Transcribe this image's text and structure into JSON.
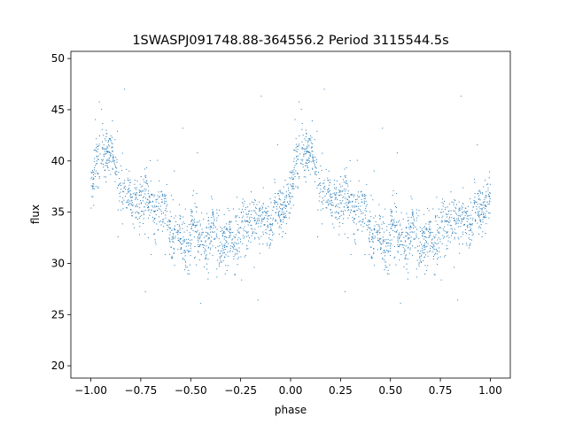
{
  "chart_data": {
    "type": "scatter",
    "title": "1SWASPJ091748.88-364556.2 Period 3115544.5s",
    "xlabel": "phase",
    "ylabel": "flux",
    "xlim": [
      -1.1,
      1.1
    ],
    "ylim": [
      18.8,
      50.7
    ],
    "x_ticks": [
      -1.0,
      -0.75,
      -0.5,
      -0.25,
      0.0,
      0.25,
      0.5,
      0.75,
      1.0
    ],
    "x_tick_labels": [
      "−1.00",
      "−0.75",
      "−0.50",
      "−0.25",
      "0.00",
      "0.25",
      "0.50",
      "0.75",
      "1.00"
    ],
    "y_ticks": [
      20,
      25,
      30,
      35,
      40,
      45,
      50
    ],
    "y_tick_labels": [
      "20",
      "25",
      "30",
      "35",
      "40",
      "45",
      "50"
    ],
    "grid": false,
    "marker_color": "#1f77b4",
    "series": [
      {
        "period_repeat": 1.0,
        "trend": [
          {
            "x": 0.0,
            "y": 37.5
          },
          {
            "x": 0.04,
            "y": 39.5
          },
          {
            "x": 0.08,
            "y": 40.0
          },
          {
            "x": 0.12,
            "y": 39.0
          },
          {
            "x": 0.18,
            "y": 37.5
          },
          {
            "x": 0.25,
            "y": 35.5
          },
          {
            "x": 0.32,
            "y": 34.5
          },
          {
            "x": 0.4,
            "y": 34.0
          },
          {
            "x": 0.48,
            "y": 33.0
          },
          {
            "x": 0.55,
            "y": 32.0
          },
          {
            "x": 0.6,
            "y": 31.5
          },
          {
            "x": 0.66,
            "y": 32.5
          },
          {
            "x": 0.72,
            "y": 33.0
          },
          {
            "x": 0.78,
            "y": 33.5
          },
          {
            "x": 0.85,
            "y": 34.0
          },
          {
            "x": 0.9,
            "y": 35.0
          },
          {
            "x": 0.95,
            "y": 36.0
          },
          {
            "x": 1.0,
            "y": 37.5
          }
        ],
        "spread": 2.2
      }
    ]
  }
}
